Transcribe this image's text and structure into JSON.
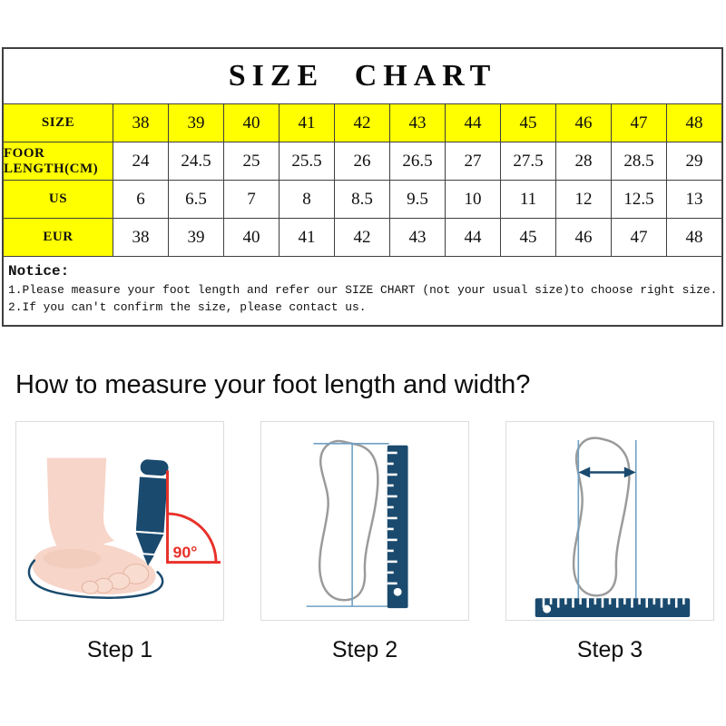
{
  "size_chart": {
    "title": "SIZE CHART",
    "rows": [
      {
        "header": "SIZE",
        "highlight": true,
        "cells": [
          "38",
          "39",
          "40",
          "41",
          "42",
          "43",
          "44",
          "45",
          "46",
          "47",
          "48"
        ]
      },
      {
        "header": "FOOR LENGTH(CM)",
        "highlight": false,
        "cells": [
          "24",
          "24.5",
          "25",
          "25.5",
          "26",
          "26.5",
          "27",
          "27.5",
          "28",
          "28.5",
          "29"
        ]
      },
      {
        "header": "US",
        "highlight": false,
        "cells": [
          "6",
          "6.5",
          "7",
          "8",
          "8.5",
          "9.5",
          "10",
          "11",
          "12",
          "12.5",
          "13"
        ]
      },
      {
        "header": "EUR",
        "highlight": false,
        "cells": [
          "38",
          "39",
          "40",
          "41",
          "42",
          "43",
          "44",
          "45",
          "46",
          "47",
          "48"
        ]
      }
    ],
    "notice": {
      "title": "Notice:",
      "lines": [
        "1.Please measure your foot length and refer our SIZE CHART (not your usual size)to choose right size.",
        "2.If you can't confirm the size, please contact us."
      ]
    },
    "colors": {
      "highlight": "#ffff00",
      "border": "#404040"
    }
  },
  "measure_guide": {
    "heading": "How to measure your foot length and width?",
    "steps": [
      {
        "label": "Step 1",
        "illustration": "foot-traced-with-pen-at-90-degrees",
        "angle_text": "90°"
      },
      {
        "label": "Step 2",
        "illustration": "foot-outline-length-with-vertical-ruler"
      },
      {
        "label": "Step 3",
        "illustration": "foot-outline-width-arrow-with-horizontal-ruler"
      }
    ],
    "colors": {
      "navy": "#1a4a6e",
      "red": "#e8312a",
      "skin": "#f7d5c8",
      "skin_shade": "#efc5b4",
      "outline_gray": "#9b9b9b",
      "light_blue": "#6fa0c4"
    }
  }
}
